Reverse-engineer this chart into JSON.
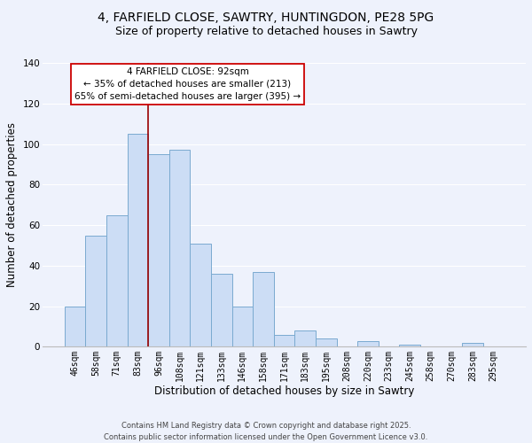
{
  "title1": "4, FARFIELD CLOSE, SAWTRY, HUNTINGDON, PE28 5PG",
  "title2": "Size of property relative to detached houses in Sawtry",
  "xlabel": "Distribution of detached houses by size in Sawtry",
  "ylabel": "Number of detached properties",
  "categories": [
    "46sqm",
    "58sqm",
    "71sqm",
    "83sqm",
    "96sqm",
    "108sqm",
    "121sqm",
    "133sqm",
    "146sqm",
    "158sqm",
    "171sqm",
    "183sqm",
    "195sqm",
    "208sqm",
    "220sqm",
    "233sqm",
    "245sqm",
    "258sqm",
    "270sqm",
    "283sqm",
    "295sqm"
  ],
  "values": [
    20,
    55,
    65,
    105,
    95,
    97,
    51,
    36,
    20,
    37,
    6,
    8,
    4,
    0,
    3,
    0,
    1,
    0,
    0,
    2,
    0
  ],
  "bar_color": "#ccddf5",
  "bar_edge_color": "#7aaad0",
  "vline_x_index": 4,
  "vline_color": "#990000",
  "annotation_title": "4 FARFIELD CLOSE: 92sqm",
  "annotation_line1": "← 35% of detached houses are smaller (213)",
  "annotation_line2": "65% of semi-detached houses are larger (395) →",
  "annotation_box_color": "#ffffff",
  "annotation_box_edge": "#cc0000",
  "ylim": [
    0,
    140
  ],
  "yticks": [
    0,
    20,
    40,
    60,
    80,
    100,
    120,
    140
  ],
  "footer1": "Contains HM Land Registry data © Crown copyright and database right 2025.",
  "footer2": "Contains public sector information licensed under the Open Government Licence v3.0.",
  "background_color": "#eef2fc",
  "grid_color": "#ffffff",
  "title_fontsize": 10,
  "subtitle_fontsize": 9,
  "axis_label_fontsize": 8.5,
  "tick_fontsize": 7,
  "footer_fontsize": 6,
  "annotation_fontsize": 7.5
}
